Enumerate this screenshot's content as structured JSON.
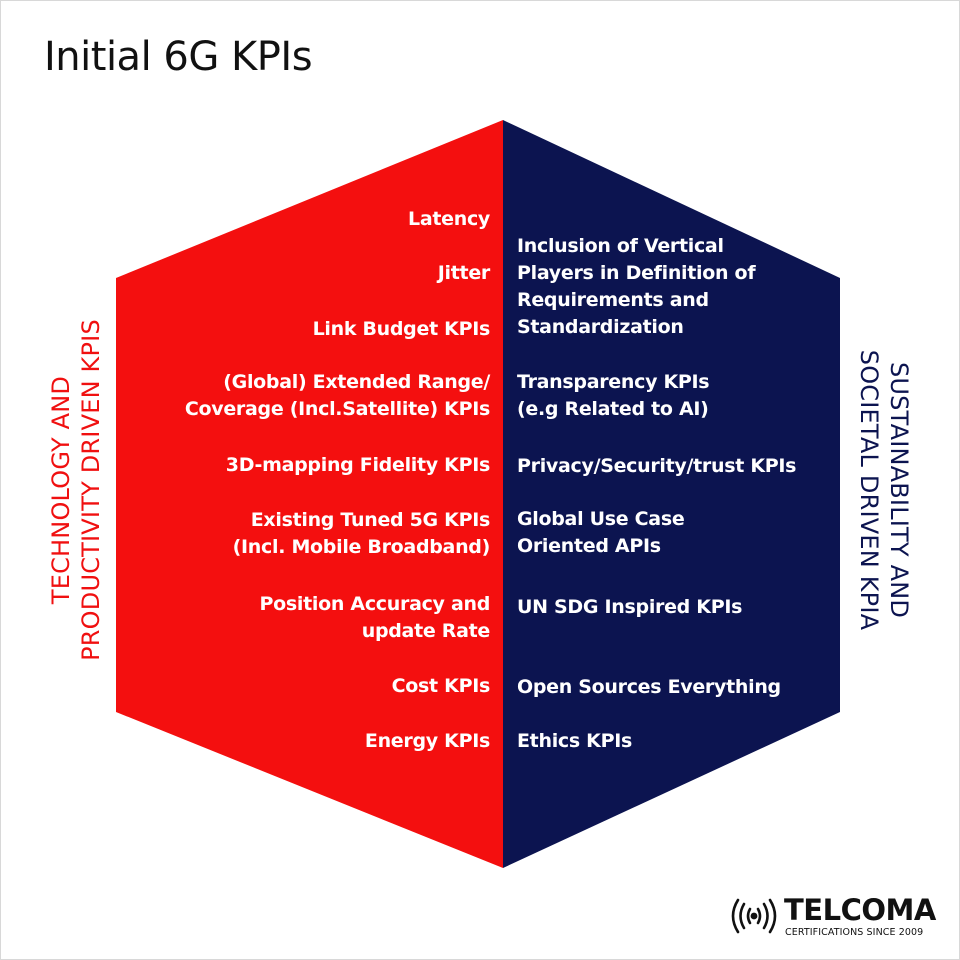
{
  "title": "Initial 6G KPIs",
  "colors": {
    "left_face": "#f40f0f",
    "right_face": "#0c1450",
    "left_text": "#f01010",
    "right_text": "#0c1450"
  },
  "left_label": "TECHNOLOGY AND\nPRODUCTIVITY DRIVEN KPIS",
  "right_label": "SUSTAINABILITY AND\nSOCIETAL DRIVEN KPIA",
  "left_items": [
    "Latency",
    "Jitter",
    "Link Budget KPIs",
    "(Global) Extended Range/\nCoverage (Incl.Satellite) KPIs",
    "3D-mapping  Fidelity KPIs",
    "Existing Tuned  5G KPIs\n(Incl. Mobile Broadband)",
    "Position Accuracy and\nupdate Rate",
    "Cost KPIs",
    "Energy KPIs"
  ],
  "right_items": [
    "Inclusion of Vertical\nPlayers in Definition of\nRequirements and\nStandardization",
    "Transparency  KPIs\n(e.g Related to AI)",
    "Privacy/Security/trust KPIs",
    "Global Use Case\nOriented APIs",
    "UN SDG Inspired KPIs",
    "Open Sources Everything",
    " Ethics KPIs"
  ],
  "logo": {
    "name": "TELCOMA",
    "tagline": "CERTIFICATIONS SINCE 2009",
    "icon": "signal-waves-icon"
  }
}
